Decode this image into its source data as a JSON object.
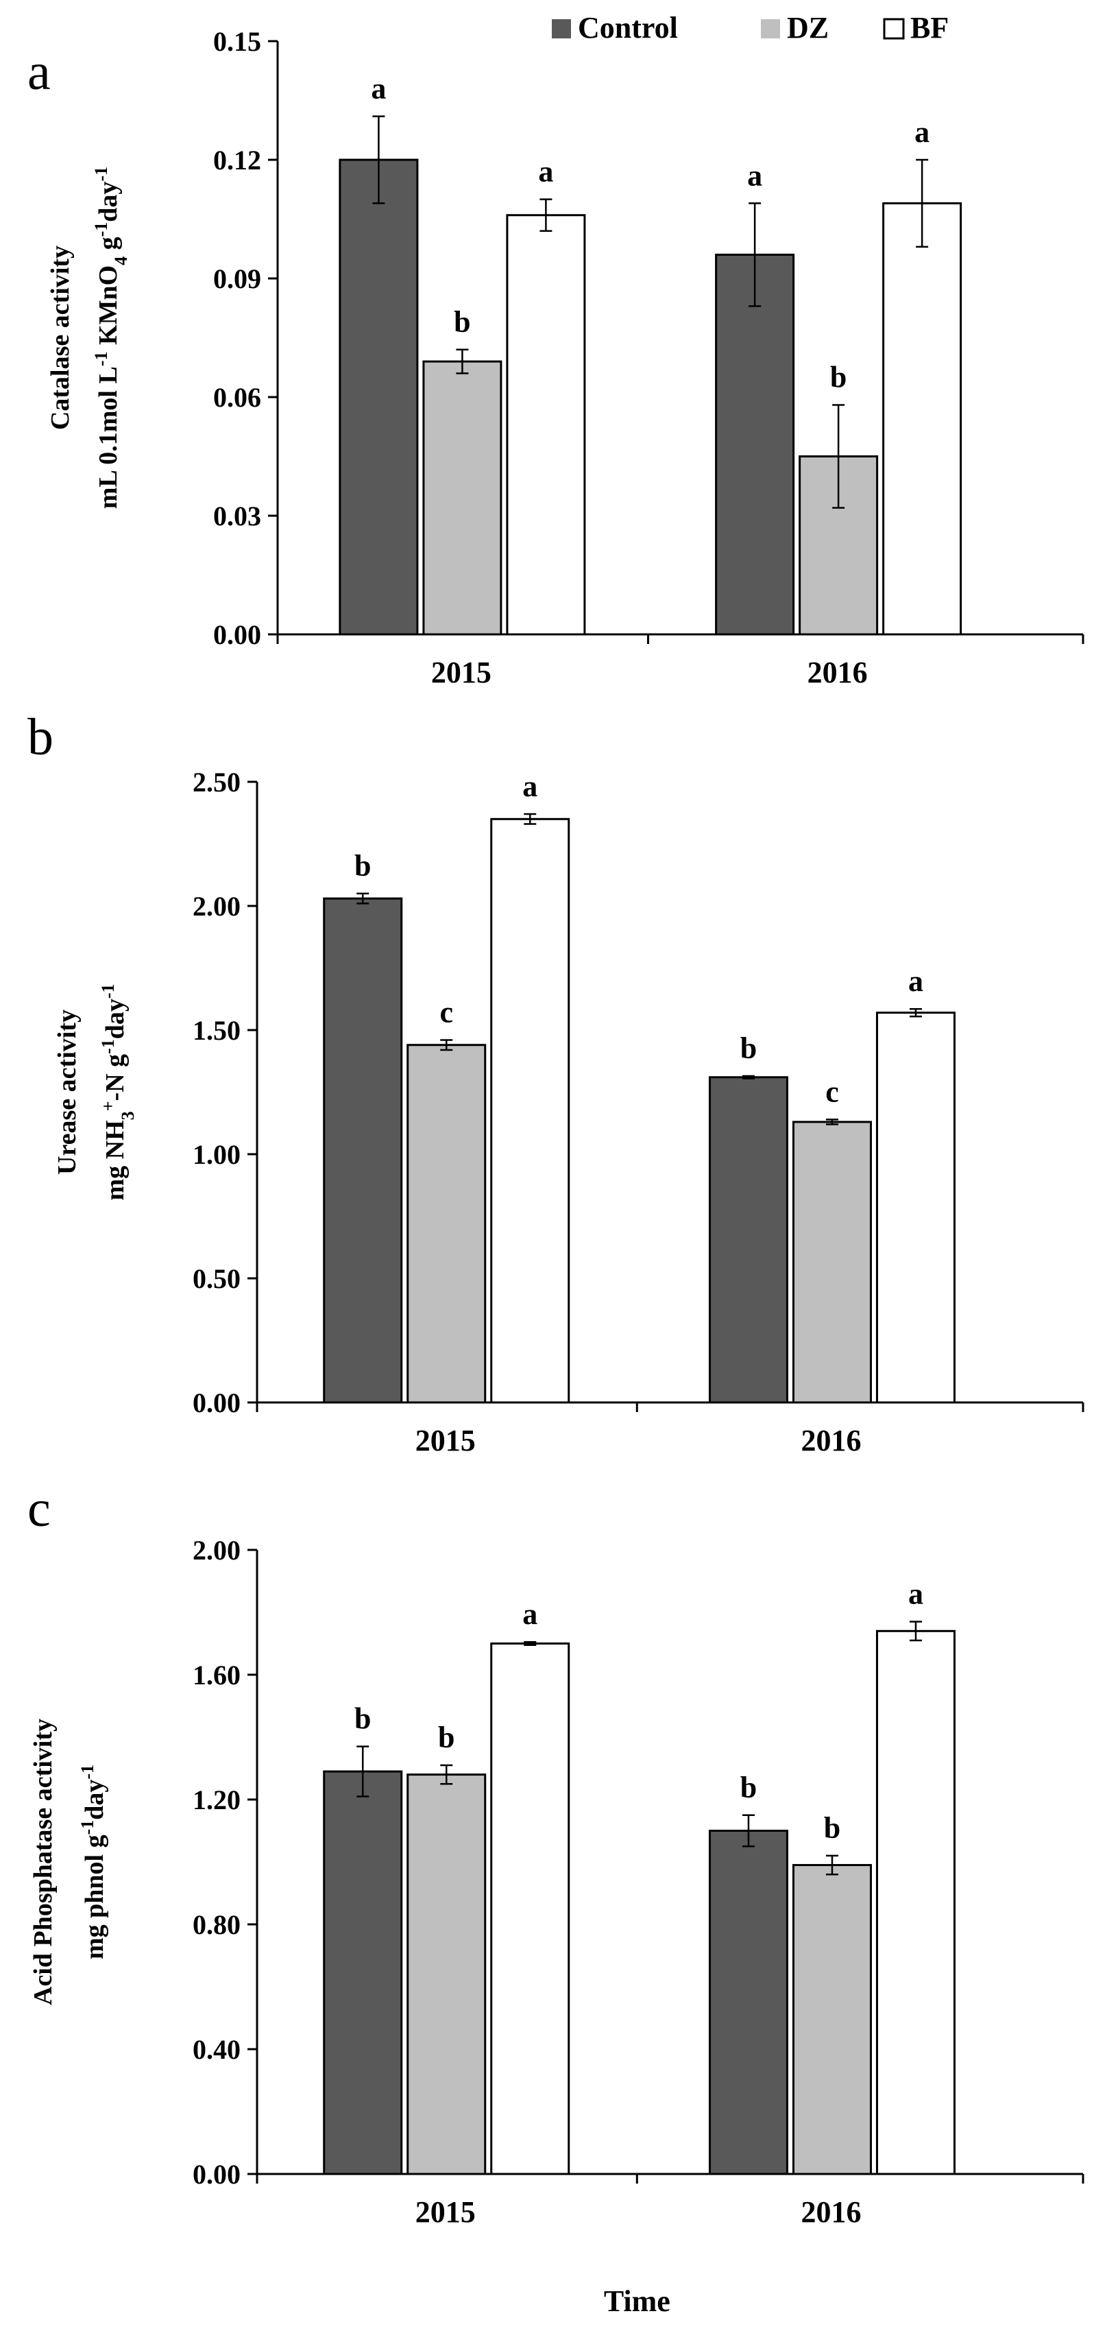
{
  "figure": {
    "legend": [
      {
        "label": "Control",
        "color": "#595959"
      },
      {
        "label": "DZ",
        "color": "#bfbfbf"
      },
      {
        "label": "BF",
        "color": "#ffffff"
      }
    ],
    "x_axis_title": "Time"
  },
  "chart_data": [
    {
      "type": "bar",
      "panel": "a",
      "ylabel_line1": "Catalase activity",
      "ylabel_line2_parts": [
        {
          "t": "mL 0.1mol L",
          "sup": false
        },
        {
          "t": "-1",
          "sup": true
        },
        {
          "t": " KMnO",
          "sup": false
        },
        {
          "t": "4",
          "sub": true
        },
        {
          "t": " g",
          "sup": false
        },
        {
          "t": "-1",
          "sup": true
        },
        {
          "t": "day",
          "sup": false
        },
        {
          "t": "-1",
          "sup": true
        }
      ],
      "ylim": [
        0,
        0.15
      ],
      "yticks": [
        "0.00",
        "0.03",
        "0.06",
        "0.09",
        "0.12",
        "0.15"
      ],
      "categories": [
        "2015",
        "2016"
      ],
      "series": [
        {
          "name": "Control",
          "values": [
            0.12,
            0.096
          ],
          "errors": [
            0.011,
            0.013
          ],
          "letters": [
            "a",
            "a"
          ]
        },
        {
          "name": "DZ",
          "values": [
            0.069,
            0.045
          ],
          "errors": [
            0.003,
            0.013
          ],
          "letters": [
            "b",
            "b"
          ]
        },
        {
          "name": "BF",
          "values": [
            0.106,
            0.109
          ],
          "errors": [
            0.004,
            0.011
          ],
          "letters": [
            "a",
            "a"
          ]
        }
      ]
    },
    {
      "type": "bar",
      "panel": "b",
      "ylabel_line1": "Urease activity",
      "ylabel_line2_parts": [
        {
          "t": "mg NH",
          "sup": false
        },
        {
          "t": "3",
          "sub": true
        },
        {
          "t": "+",
          "sup": true
        },
        {
          "t": "-N g",
          "sup": false
        },
        {
          "t": "-1",
          "sup": true
        },
        {
          "t": "day",
          "sup": false
        },
        {
          "t": "-1",
          "sup": true
        }
      ],
      "ylim": [
        0,
        2.5
      ],
      "yticks": [
        "0.00",
        "0.50",
        "1.00",
        "1.50",
        "2.00",
        "2.50"
      ],
      "categories": [
        "2015",
        "2016"
      ],
      "series": [
        {
          "name": "Control",
          "values": [
            2.03,
            1.31
          ],
          "errors": [
            0.02,
            0.005
          ],
          "letters": [
            "b",
            "b"
          ]
        },
        {
          "name": "DZ",
          "values": [
            1.44,
            1.13
          ],
          "errors": [
            0.02,
            0.01
          ],
          "letters": [
            "c",
            "c"
          ]
        },
        {
          "name": "BF",
          "values": [
            2.35,
            1.57
          ],
          "errors": [
            0.02,
            0.015
          ],
          "letters": [
            "a",
            "a"
          ]
        }
      ]
    },
    {
      "type": "bar",
      "panel": "c",
      "ylabel_line1": "Acid Phosphatase activity",
      "ylabel_line2_parts": [
        {
          "t": "mg phnol g",
          "sup": false
        },
        {
          "t": "-1",
          "sup": true
        },
        {
          "t": "day",
          "sup": false
        },
        {
          "t": "-1",
          "sup": true
        }
      ],
      "ylim": [
        0,
        2.0
      ],
      "yticks": [
        "0.00",
        "0.40",
        "0.80",
        "1.20",
        "1.60",
        "2.00"
      ],
      "categories": [
        "2015",
        "2016"
      ],
      "xlabel": "Time",
      "series": [
        {
          "name": "Control",
          "values": [
            1.29,
            1.1
          ],
          "errors": [
            0.08,
            0.05
          ],
          "letters": [
            "b",
            "b"
          ]
        },
        {
          "name": "DZ",
          "values": [
            1.28,
            0.99
          ],
          "errors": [
            0.03,
            0.03
          ],
          "letters": [
            "b",
            "b"
          ]
        },
        {
          "name": "BF",
          "values": [
            1.7,
            1.74
          ],
          "errors": [
            0.005,
            0.03
          ],
          "letters": [
            "a",
            "a"
          ]
        }
      ]
    }
  ]
}
